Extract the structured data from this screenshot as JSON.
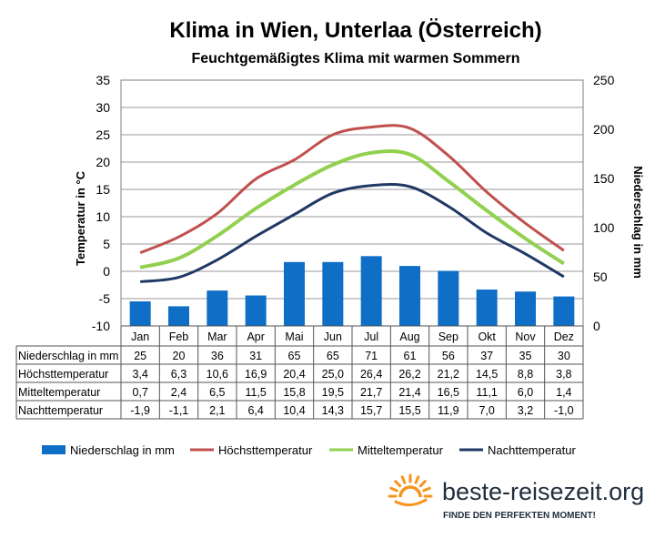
{
  "chart_data": {
    "type": "bar+line",
    "title": "Klima in Wien, Unterlaa (Österreich)",
    "subtitle": "Feuchtgemäßigtes Klima mit warmen Sommern",
    "categories": [
      "Jan",
      "Feb",
      "Mar",
      "Apr",
      "Mai",
      "Jun",
      "Jul",
      "Aug",
      "Sep",
      "Okt",
      "Nov",
      "Dez"
    ],
    "ylabel": "Temperatur in °C",
    "ylim": [
      -10,
      35
    ],
    "yticks": [
      "35",
      "30",
      "25",
      "20",
      "15",
      "10",
      "5",
      "0",
      "-5",
      "-10"
    ],
    "y2label": "Niederschlag in mm",
    "y2lim": [
      0,
      250
    ],
    "y2ticks": [
      "250",
      "200",
      "150",
      "100",
      "50",
      "0"
    ],
    "grid": true,
    "legend_position": "bottom",
    "series": [
      {
        "name": "Niederschlag in mm",
        "kind": "bar",
        "axis": "right",
        "color": "#0f6fc6",
        "values": [
          25,
          20,
          36,
          31,
          65,
          65,
          71,
          61,
          56,
          37,
          35,
          30
        ],
        "labels": [
          "25",
          "20",
          "36",
          "31",
          "65",
          "65",
          "71",
          "61",
          "56",
          "37",
          "35",
          "30"
        ]
      },
      {
        "name": "Höchsttemperatur",
        "kind": "line",
        "axis": "left",
        "color": "#c0504d",
        "values": [
          3.4,
          6.3,
          10.6,
          16.9,
          20.4,
          25.0,
          26.4,
          26.2,
          21.2,
          14.5,
          8.8,
          3.8
        ],
        "labels": [
          "3,4",
          "6,3",
          "10,6",
          "16,9",
          "20,4",
          "25,0",
          "26,4",
          "26,2",
          "21,2",
          "14,5",
          "8,8",
          "3,8"
        ]
      },
      {
        "name": "Mitteltemperatur",
        "kind": "line",
        "axis": "left",
        "color": "#92d050",
        "values": [
          0.7,
          2.4,
          6.5,
          11.5,
          15.8,
          19.5,
          21.7,
          21.4,
          16.5,
          11.1,
          6.0,
          1.4
        ],
        "labels": [
          "0,7",
          "2,4",
          "6,5",
          "11,5",
          "15,8",
          "19,5",
          "21,7",
          "21,4",
          "16,5",
          "11,1",
          "6,0",
          "1,4"
        ]
      },
      {
        "name": "Nachttemperatur",
        "kind": "line",
        "axis": "left",
        "color": "#1f3864",
        "values": [
          -1.9,
          -1.1,
          2.1,
          6.4,
          10.4,
          14.3,
          15.7,
          15.5,
          11.9,
          7.0,
          3.2,
          -1.0
        ],
        "labels": [
          "-1,9",
          "-1,1",
          "2,1",
          "6,4",
          "10,4",
          "14,3",
          "15,7",
          "15,5",
          "11,9",
          "7,0",
          "3,2",
          "-1,0"
        ]
      }
    ]
  },
  "branding": {
    "name": "beste-reisezeit.org",
    "tagline": "FINDE DEN PERFEKTEN MOMENT!",
    "sun_color": "#f7941d"
  }
}
